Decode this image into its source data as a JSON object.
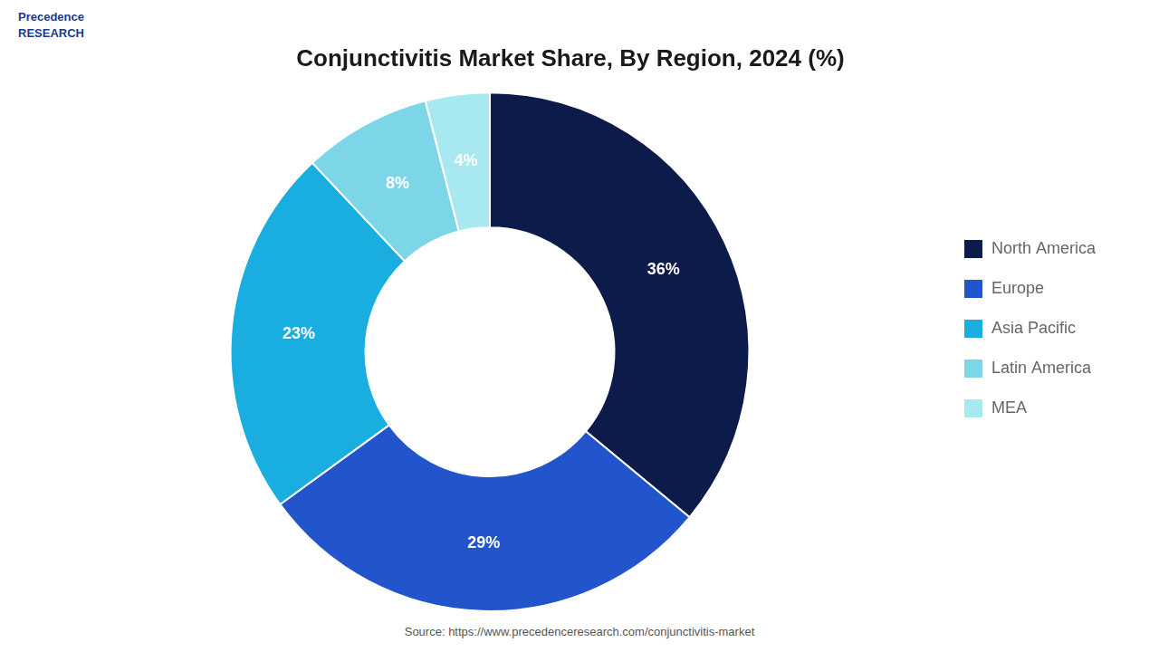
{
  "chart_data": {
    "type": "doughnut",
    "title": "Conjunctivitis Market Share, By Region, 2024 (%)",
    "categories": [
      "North America",
      "Europe",
      "Asia Pacific",
      "Latin America",
      "MEA"
    ],
    "values": [
      36,
      29,
      23,
      8,
      4
    ],
    "value_labels": [
      "36%",
      "29%",
      "23%",
      "8%",
      "4%"
    ],
    "colors": [
      "#0d1b4b",
      "#2255cc",
      "#1aade0",
      "#7dd6e8",
      "#a8e8f0"
    ],
    "data_labels": true,
    "legend": "right",
    "annotations": [
      "Precedence\nRESEARCH",
      "Source: https://www.precedenceresearch.com/conjunctivitis-market"
    ]
  }
}
